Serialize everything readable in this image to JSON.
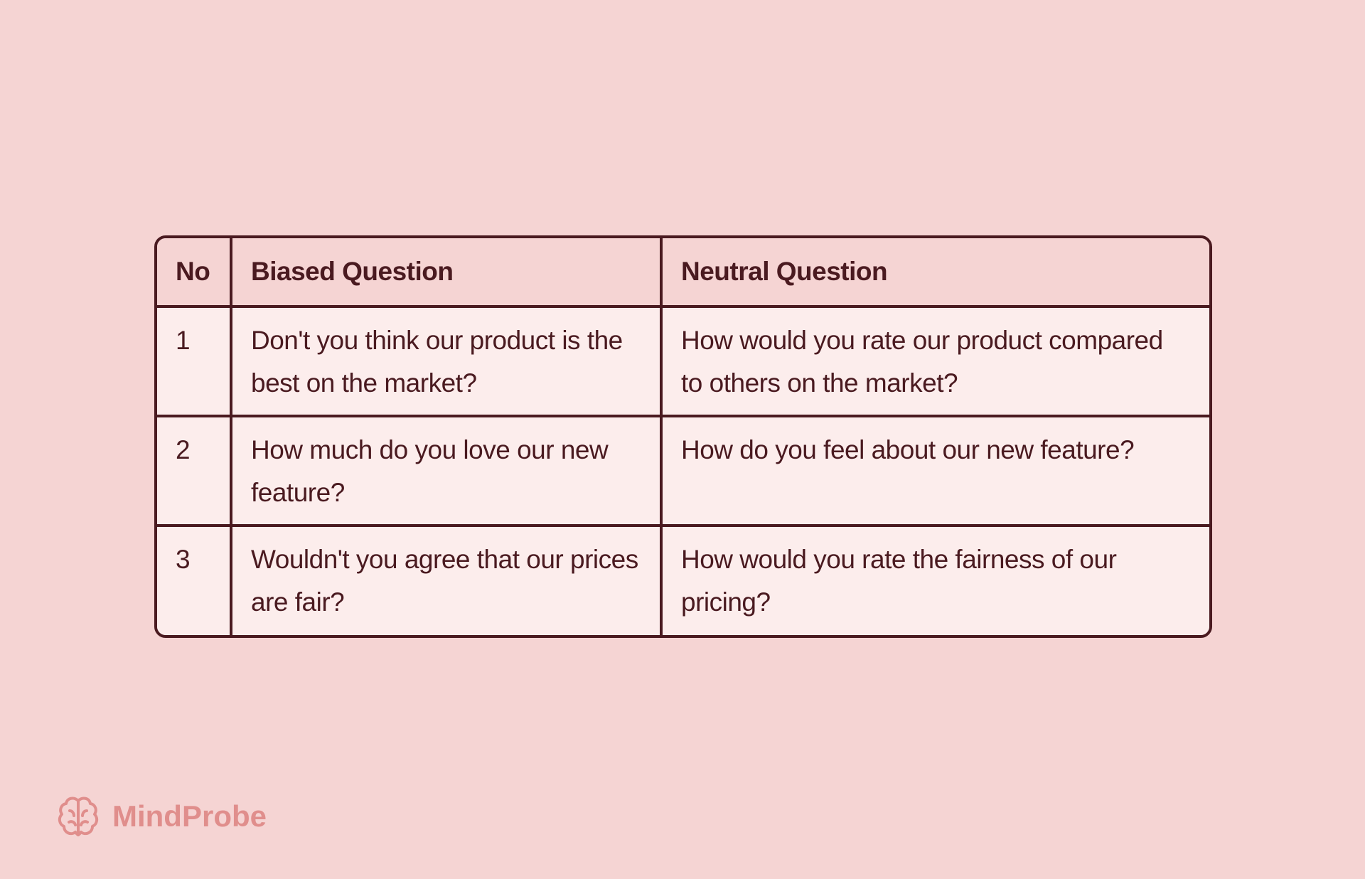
{
  "table": {
    "header": [
      "No",
      "Biased Question",
      "Neutral Question"
    ],
    "rows": [
      [
        "1",
        "Don't you think our product is the best on the market?",
        "How would you rate our product compared to others on the market?"
      ],
      [
        "2",
        "How much do you love our new feature?",
        "How do you feel about our new feature?"
      ],
      [
        "3",
        "Wouldn't you agree that our prices are fair?",
        "How would you rate the fairness of our pricing?"
      ]
    ]
  },
  "brand": {
    "name": "MindProbe"
  }
}
